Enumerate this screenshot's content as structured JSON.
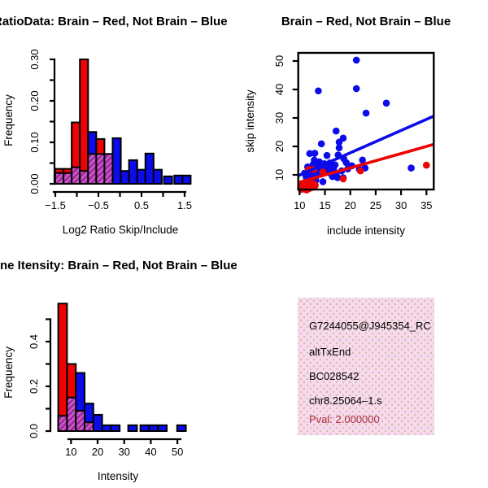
{
  "colors": {
    "red": "#EE0202",
    "blue": "#0B0BEB",
    "purple": "#9B2D9B",
    "purple_stripe": "#D35FD3",
    "axis": "#000000",
    "pval_text": "#B02E3F",
    "infobox_bg": "#F9D8F0",
    "infobox_dot": "#CBC7A2"
  },
  "chart_data": [
    {
      "id": "hist1",
      "type": "bar",
      "subtype": "overlaid-histograms",
      "title": "RatioData: Brain – Red, Not Brain – Blue",
      "xlabel": "Log2 Ratio Skip/Include",
      "ylabel": "Frequency",
      "xlim": [
        -1.5,
        1.6
      ],
      "ylim": [
        0,
        0.31
      ],
      "x_ticks": [
        -1.5,
        -1.0,
        -0.5,
        0,
        0.5,
        1.0,
        1.5
      ],
      "x_tick_labels": [
        "−1.5",
        "",
        "−0.5",
        "",
        "0.5",
        "",
        "1.5"
      ],
      "y_ticks": [
        0,
        0.05,
        0.1,
        0.15,
        0.2,
        0.25,
        0.3
      ],
      "y_tick_labels": [
        "0.00",
        "",
        "0.10",
        "",
        "0.20",
        "",
        "0.30"
      ],
      "bin_width": 0.19,
      "legend_note": "Brain histogram red, Not-Brain histogram blue, overlap purple hatch",
      "red_bars": [
        {
          "x": -1.5,
          "h": 0.036
        },
        {
          "x": -1.31,
          "h": 0.036
        },
        {
          "x": -1.12,
          "h": 0.148
        },
        {
          "x": -0.93,
          "h": 0.3
        },
        {
          "x": -0.55,
          "h": 0.108
        }
      ],
      "blue_bars": [
        {
          "x": -0.74,
          "h": 0.125
        },
        {
          "x": -0.17,
          "h": 0.11
        },
        {
          "x": 0.02,
          "h": 0.031
        },
        {
          "x": 0.21,
          "h": 0.057
        },
        {
          "x": 0.4,
          "h": 0.034
        },
        {
          "x": 0.59,
          "h": 0.073
        },
        {
          "x": 0.78,
          "h": 0.034
        },
        {
          "x": 1.02,
          "h": 0.018
        },
        {
          "x": 1.26,
          "h": 0.02
        },
        {
          "x": 1.45,
          "h": 0.02
        }
      ],
      "overlap_bars": [
        {
          "x": -1.5,
          "h": 0.026
        },
        {
          "x": -1.31,
          "h": 0.026
        },
        {
          "x": -1.12,
          "h": 0.04
        },
        {
          "x": -0.93,
          "h": 0.031
        },
        {
          "x": -0.74,
          "h": 0.072
        },
        {
          "x": -0.55,
          "h": 0.072
        },
        {
          "x": -0.36,
          "h": 0.072
        }
      ]
    },
    {
      "id": "scatter",
      "type": "scatter",
      "title": "Brain – Red, Not Brain – Blue",
      "xlabel": "include intensity",
      "ylabel": "skip intensity",
      "xlim": [
        9.7,
        36.4
      ],
      "ylim": [
        2.9,
        52.9
      ],
      "x_ticks": [
        10,
        15,
        20,
        25,
        30,
        35
      ],
      "y_ticks": [
        10,
        20,
        30,
        40,
        50
      ],
      "blue_points": [
        [
          21.2,
          50.3
        ],
        [
          13.7,
          39.5
        ],
        [
          21.2,
          40.3
        ],
        [
          27.1,
          35.2
        ],
        [
          23.1,
          31.7
        ],
        [
          17.2,
          25.4
        ],
        [
          18.6,
          22.9
        ],
        [
          14.3,
          20.9
        ],
        [
          17.8,
          21.5
        ],
        [
          17.8,
          19.5
        ],
        [
          12.0,
          17.5
        ],
        [
          13.0,
          17.6
        ],
        [
          15.4,
          16.8
        ],
        [
          17.6,
          17.0
        ],
        [
          18.7,
          15.7
        ],
        [
          19.2,
          14.3
        ],
        [
          12.7,
          13.7
        ],
        [
          13.4,
          13.2
        ],
        [
          14.6,
          12.9
        ],
        [
          15.6,
          12.4
        ],
        [
          16.7,
          11.9
        ],
        [
          22.4,
          15.2
        ],
        [
          22.9,
          12.4
        ],
        [
          21.8,
          11.9
        ],
        [
          32.0,
          12.4
        ],
        [
          11.9,
          8.6
        ],
        [
          13.2,
          8.1
        ],
        [
          17.5,
          9.0
        ],
        [
          18.6,
          9.0
        ],
        [
          14.6,
          7.6
        ],
        [
          15.1,
          11.3
        ],
        [
          15.9,
          10.7
        ],
        [
          14.2,
          11.8
        ],
        [
          13.7,
          10.9
        ],
        [
          12.4,
          11.5
        ],
        [
          16.3,
          12.8
        ],
        [
          17.0,
          13.5
        ],
        [
          16.0,
          14.2
        ],
        [
          14.9,
          13.9
        ],
        [
          13.9,
          14.6
        ],
        [
          12.9,
          15.2
        ],
        [
          11.7,
          11.2
        ],
        [
          20.3,
          13.2
        ],
        [
          19.5,
          12.1
        ],
        [
          18.3,
          11.4
        ],
        [
          17.2,
          10.2
        ],
        [
          16.5,
          9.4
        ],
        [
          11.3,
          9.2
        ],
        [
          12.1,
          9.0
        ],
        [
          11.0,
          10.6
        ],
        [
          11.8,
          11.6
        ],
        [
          12.5,
          10.3
        ],
        [
          13.3,
          9.6
        ],
        [
          12.2,
          12.6
        ],
        [
          11.6,
          12.8
        ]
      ],
      "red_points": [
        [
          10.2,
          5.5
        ],
        [
          10.5,
          6.0
        ],
        [
          10.8,
          5.0
        ],
        [
          11.0,
          6.5
        ],
        [
          11.3,
          5.6
        ],
        [
          11.6,
          6.8
        ],
        [
          11.9,
          5.2
        ],
        [
          12.2,
          6.2
        ],
        [
          12.5,
          5.6
        ],
        [
          12.8,
          6.9
        ],
        [
          11.4,
          4.7
        ],
        [
          10.6,
          7.0
        ],
        [
          12.0,
          7.3
        ],
        [
          13.1,
          6.3
        ],
        [
          10.3,
          4.9
        ],
        [
          11.8,
          11.9
        ],
        [
          12.8,
          11.9
        ],
        [
          14.6,
          11.0
        ],
        [
          18.6,
          8.6
        ],
        [
          22.0,
          11.4
        ],
        [
          35.0,
          13.4
        ]
      ],
      "blue_line": {
        "x1": 9.74,
        "y1": 9.7,
        "x2": 36.4,
        "y2": 30.6
      },
      "red_line": {
        "x1": 9.74,
        "y1": 7.3,
        "x2": 36.4,
        "y2": 20.7
      }
    },
    {
      "id": "hist2",
      "type": "bar",
      "subtype": "overlaid-histograms",
      "title": "Gene Itensity: Brain – Red, Not Brain – Blue",
      "xlabel": "Intensity",
      "ylabel": "Frequency",
      "xlim": [
        5,
        53.5
      ],
      "ylim": [
        0,
        0.58
      ],
      "x_ticks": [
        10,
        20,
        30,
        40,
        50
      ],
      "x_tick_labels": [
        "10",
        "20",
        "30",
        "40",
        "50"
      ],
      "y_ticks": [
        0,
        0.1,
        0.2,
        0.3,
        0.4,
        0.5
      ],
      "y_tick_labels": [
        "0.0",
        "",
        "0.2",
        "",
        "0.4",
        ""
      ],
      "bin_width": 3.3,
      "legend_note": "Brain histogram red, Not-Brain histogram blue, overlap purple hatch",
      "red_bars": [
        {
          "x": 5.2,
          "h": 0.57
        },
        {
          "x": 8.5,
          "h": 0.3
        }
      ],
      "blue_bars": [
        {
          "x": 11.8,
          "h": 0.26
        },
        {
          "x": 15.1,
          "h": 0.123
        },
        {
          "x": 18.4,
          "h": 0.073
        },
        {
          "x": 21.7,
          "h": 0.026
        },
        {
          "x": 25.0,
          "h": 0.026
        },
        {
          "x": 31.5,
          "h": 0.026
        },
        {
          "x": 36.1,
          "h": 0.026
        },
        {
          "x": 39.4,
          "h": 0.026
        },
        {
          "x": 42.7,
          "h": 0.026
        },
        {
          "x": 49.9,
          "h": 0.026
        }
      ],
      "overlap_bars": [
        {
          "x": 5.2,
          "h": 0.068
        },
        {
          "x": 8.5,
          "h": 0.15
        },
        {
          "x": 11.8,
          "h": 0.091
        },
        {
          "x": 15.1,
          "h": 0.039
        }
      ]
    }
  ],
  "info_box": {
    "lines": [
      {
        "text": "G7244055@J945354_RC"
      },
      {
        "text": "altTxEnd"
      },
      {
        "text": "BC028542"
      },
      {
        "text": "chr8.25064–1.s"
      },
      {
        "text": "Pval: 2.000000"
      }
    ]
  }
}
